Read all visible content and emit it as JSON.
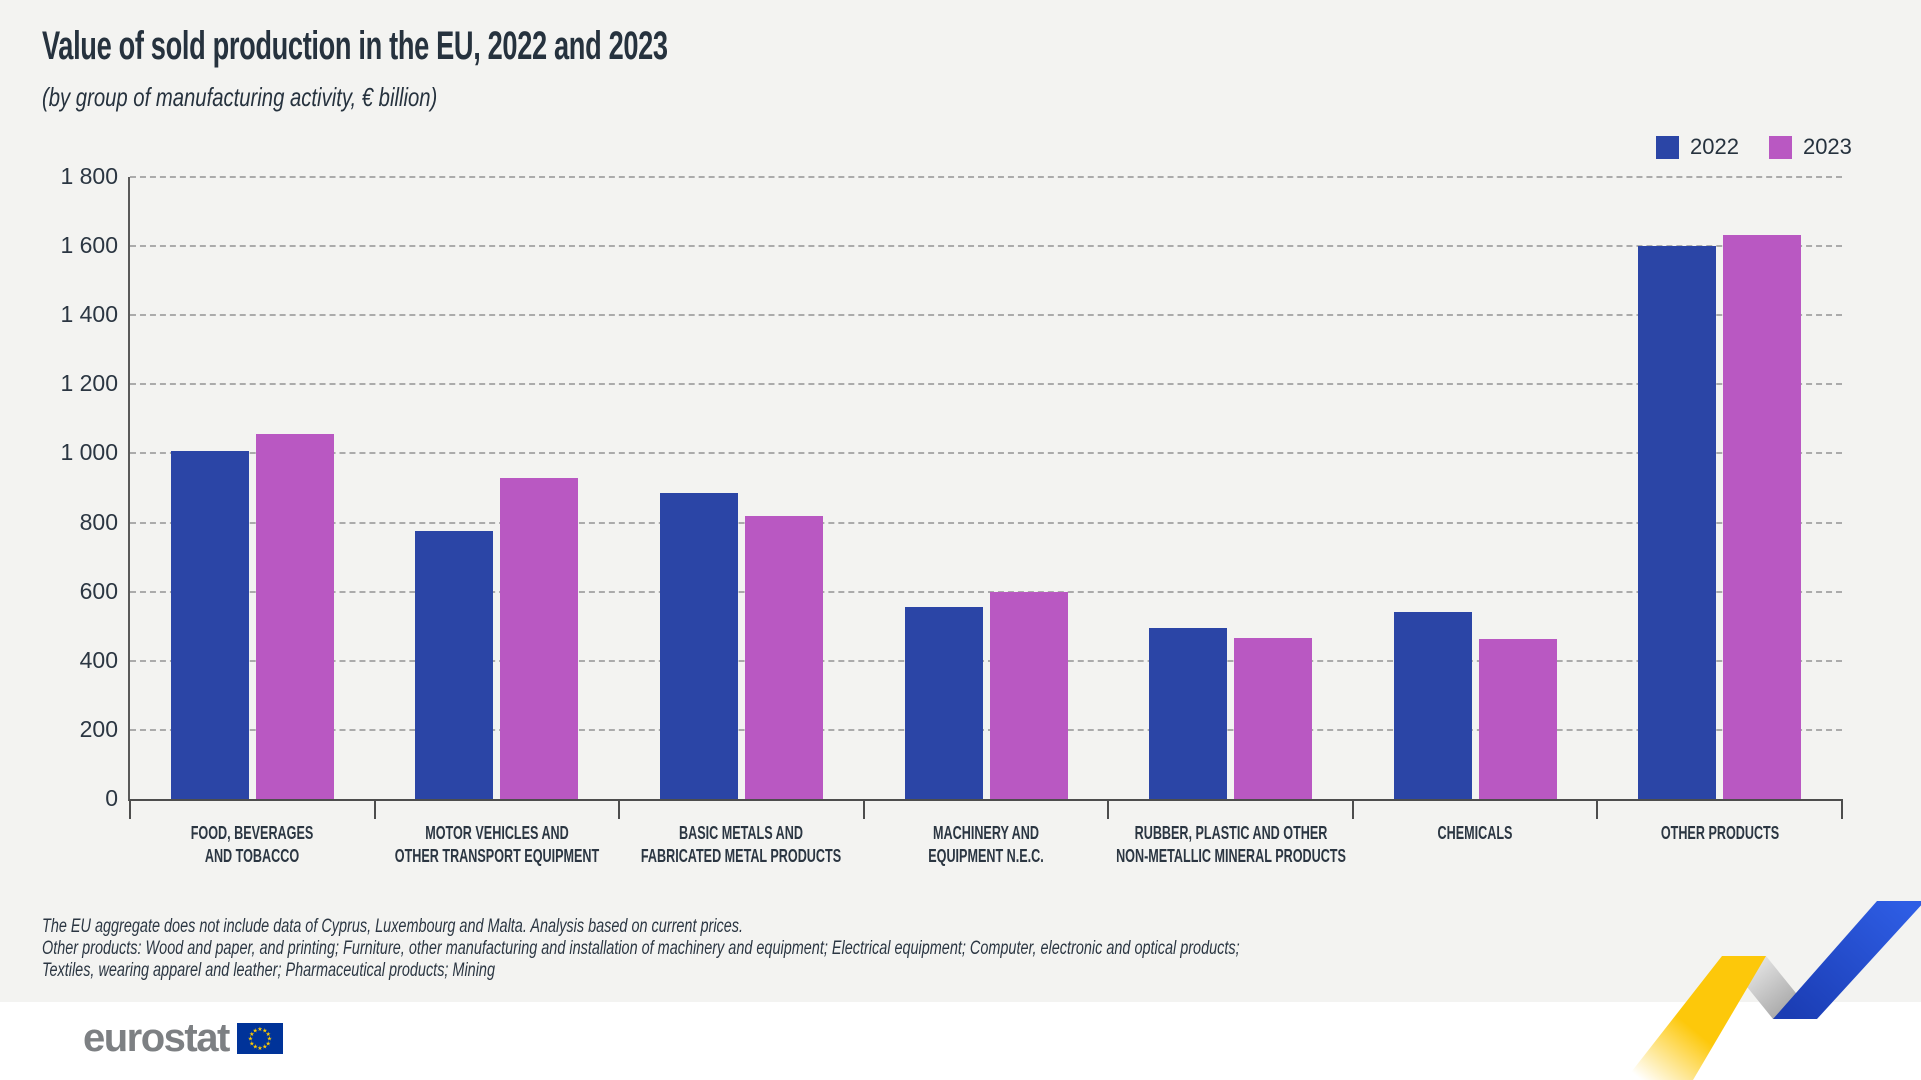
{
  "header": {
    "title": "Value of sold production in the EU, 2022 and 2023",
    "subtitle": "(by group of manufacturing activity, € billion)"
  },
  "chart_data": {
    "type": "bar",
    "title": "Value of sold production in the EU, 2022 and 2023",
    "subtitle": "(by group of manufacturing activity, € billion)",
    "categories": [
      "FOOD, BEVERAGES\nAND TOBACCO",
      "MOTOR VEHICLES AND\nOTHER TRANSPORT EQUIPMENT",
      "BASIC METALS AND\nFABRICATED METAL PRODUCTS",
      "MACHINERY AND\nEQUIPMENT N.E.C.",
      "RUBBER, PLASTIC AND OTHER\nNON-METALLIC MINERAL PRODUCTS",
      "CHEMICALS",
      "OTHER PRODUCTS"
    ],
    "series": [
      {
        "name": "2022",
        "color": "#2b45a6",
        "values": [
          1008,
          776,
          886,
          556,
          496,
          541,
          1600
        ]
      },
      {
        "name": "2023",
        "color": "#b958c2",
        "values": [
          1057,
          930,
          818,
          600,
          467,
          462,
          1633
        ]
      }
    ],
    "xlabel": "",
    "ylabel": "",
    "ylim": [
      0,
      1800
    ],
    "ytick_step": 200,
    "ytick_labels": [
      "0",
      "200",
      "400",
      "600",
      "800",
      "1 000",
      "1 200",
      "1 400",
      "1 600",
      "1 800"
    ],
    "grid": "horizontal-dashed",
    "legend_position": "top-right"
  },
  "footnotes": {
    "lines": [
      "The EU aggregate does not include data of Cyprus, Luxembourg and Malta. Analysis based on current prices.",
      "Other products: Wood and paper, and printing; Furniture, other manufacturing and installation of machinery and equipment; Electrical equipment; Computer, electronic and optical products;",
      "Textiles, wearing apparel and leather; Pharmaceutical products; Mining"
    ]
  },
  "footer": {
    "logo_text": "eurostat"
  },
  "colors": {
    "background": "#f3f3f1",
    "footer_background": "#ffffff",
    "bar_2022": "#2b45a6",
    "bar_2023": "#b958c2",
    "grid": "#ababab",
    "axis": "#4d4d4d",
    "text": "#2b3642",
    "logo_gray": "#7d8083",
    "eu_flag_blue": "#003399",
    "eu_flag_stars": "#ffcc00",
    "ribbon_yellow": "#fdc80a",
    "ribbon_gray": "#b5b5b5",
    "ribbon_blue": "#2150d6"
  }
}
